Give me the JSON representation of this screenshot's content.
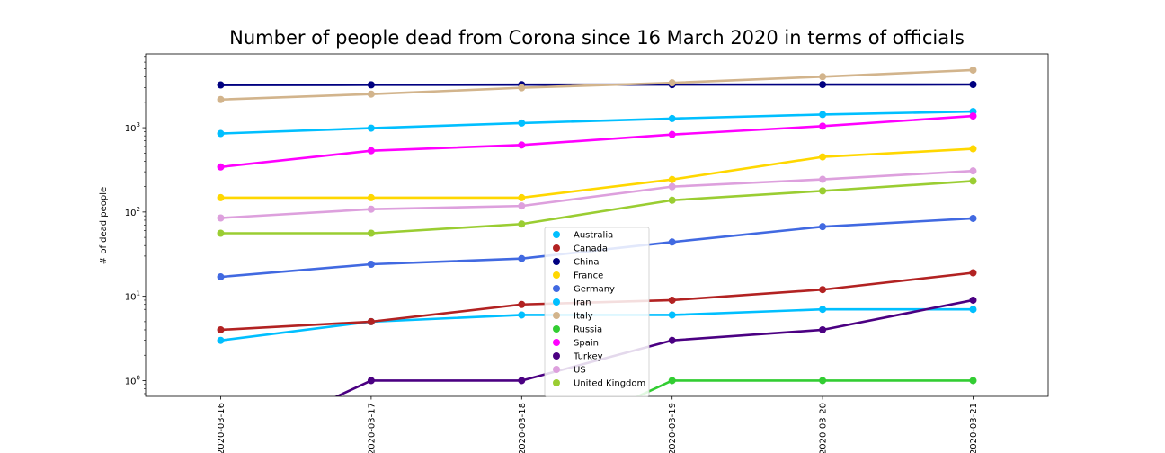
{
  "chart_data": {
    "type": "line",
    "title": "Number of people dead from Corona since 16 March 2020 in terms of officials",
    "xlabel": "",
    "ylabel": "# of dead people",
    "yscale": "log",
    "ylim": [
      0.65,
      7500
    ],
    "categories": [
      "2020-03-16",
      "2020-03-17",
      "2020-03-18",
      "2020-03-19",
      "2020-03-20",
      "2020-03-21"
    ],
    "y_ticks": [
      {
        "value": 1,
        "base": "10",
        "exp": "0"
      },
      {
        "value": 10,
        "base": "10",
        "exp": "1"
      },
      {
        "value": 100,
        "base": "10",
        "exp": "2"
      },
      {
        "value": 1000,
        "base": "10",
        "exp": "3"
      }
    ],
    "legend_position": "center-bottom",
    "grid": false,
    "series": [
      {
        "name": "Australia",
        "color": "#00bfff",
        "values": [
          3,
          5,
          6,
          6,
          7,
          7
        ]
      },
      {
        "name": "Canada",
        "color": "#b22222",
        "values": [
          4,
          5,
          8,
          9,
          12,
          19
        ]
      },
      {
        "name": "China",
        "color": "#000080",
        "values": [
          3213,
          3226,
          3237,
          3245,
          3248,
          3255
        ]
      },
      {
        "name": "France",
        "color": "#ffd700",
        "values": [
          148,
          148,
          148,
          243,
          450,
          562
        ]
      },
      {
        "name": "Germany",
        "color": "#4169e1",
        "values": [
          17,
          24,
          28,
          44,
          67,
          84
        ]
      },
      {
        "name": "Iran",
        "color": "#00bfff",
        "values": [
          853,
          988,
          1135,
          1284,
          1433,
          1556
        ]
      },
      {
        "name": "Italy",
        "color": "#d2b48c",
        "values": [
          2158,
          2503,
          2978,
          3405,
          4032,
          4825
        ]
      },
      {
        "name": "Russia",
        "color": "#32cd32",
        "values": [
          0,
          0,
          0,
          1,
          1,
          1
        ]
      },
      {
        "name": "Spain",
        "color": "#ff00ff",
        "values": [
          342,
          533,
          623,
          830,
          1043,
          1375
        ]
      },
      {
        "name": "Turkey",
        "color": "#4b0082",
        "values": [
          0,
          1,
          1,
          3,
          4,
          9
        ]
      },
      {
        "name": "US",
        "color": "#dda0dd",
        "values": [
          85,
          108,
          118,
          200,
          244,
          307
        ]
      },
      {
        "name": "United Kingdom",
        "color": "#9acd32",
        "values": [
          56,
          56,
          72,
          138,
          178,
          233
        ]
      }
    ]
  }
}
